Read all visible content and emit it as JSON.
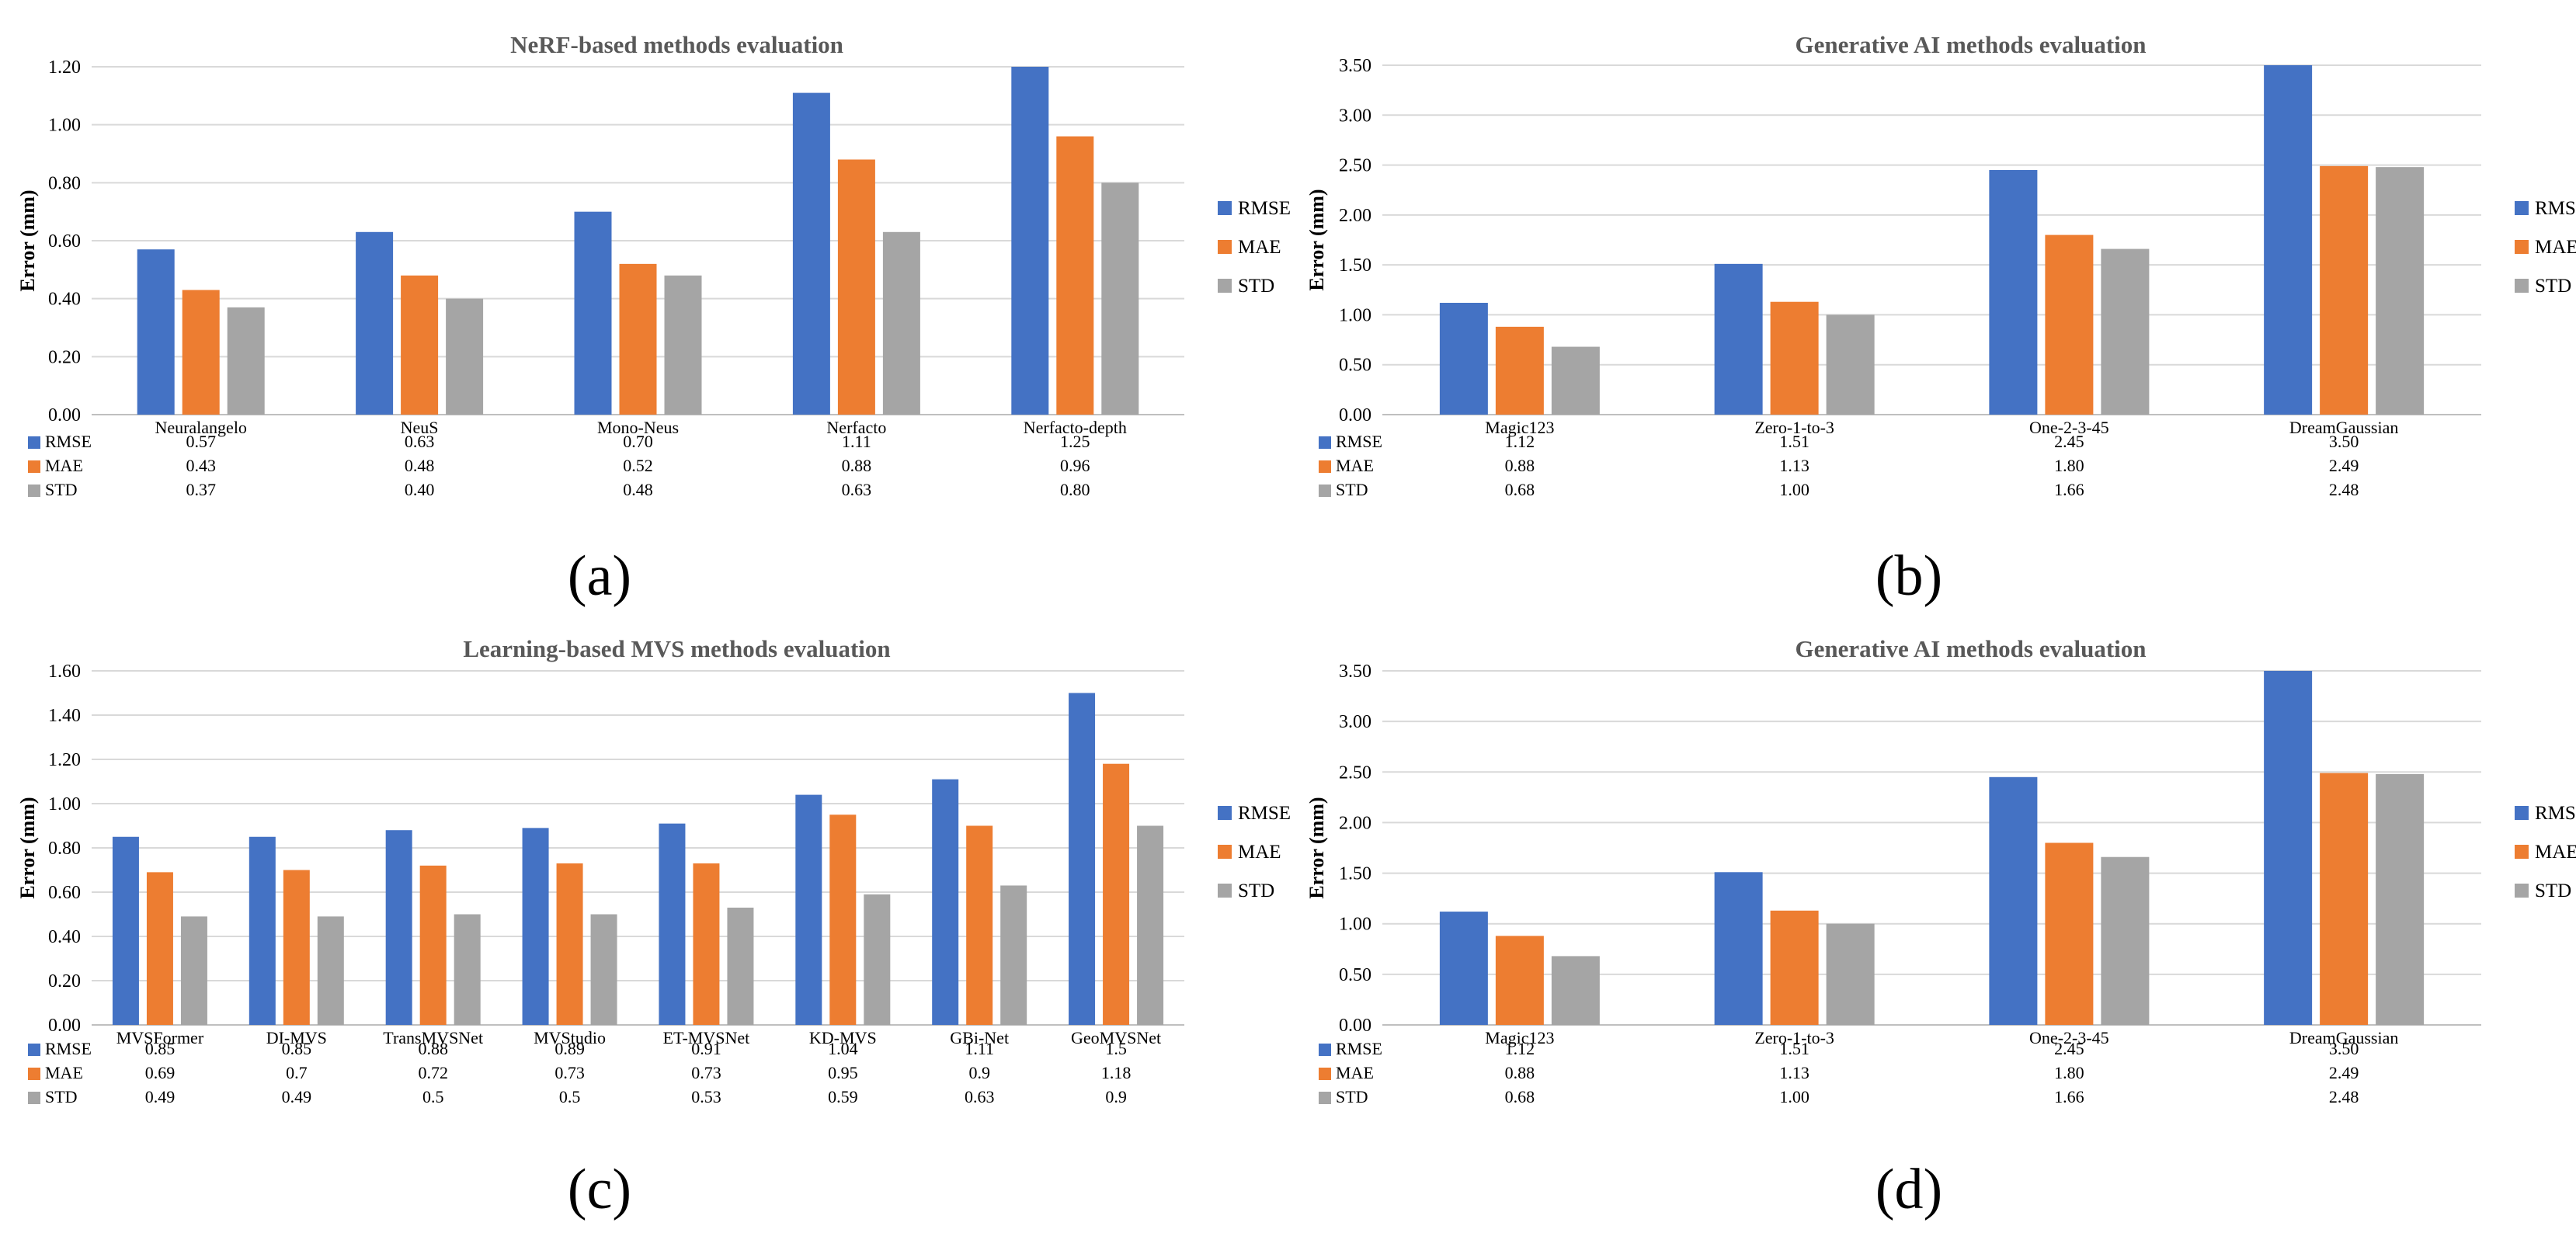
{
  "chart_data": [
    {
      "id": "a",
      "type": "bar",
      "title": "NeRF-based methods evaluation",
      "ylabel": "Error (mm)",
      "xlabel": "",
      "ylim": [
        0,
        1.2
      ],
      "yticks": [
        "0.00",
        "0.20",
        "0.40",
        "0.60",
        "0.80",
        "1.00",
        "1.20"
      ],
      "categories": [
        "Neuralangelo",
        "NeuS",
        "Mono-Neus",
        "Nerfacto",
        "Nerfacto-depth"
      ],
      "series": [
        {
          "name": "RMSE",
          "values": [
            0.57,
            0.63,
            0.7,
            1.11,
            1.25
          ],
          "labels": [
            "0.57",
            "0.63",
            "0.70",
            "1.11",
            "1.25"
          ]
        },
        {
          "name": "MAE",
          "values": [
            0.43,
            0.48,
            0.52,
            0.88,
            0.96
          ],
          "labels": [
            "0.43",
            "0.48",
            "0.52",
            "0.88",
            "0.96"
          ]
        },
        {
          "name": "STD",
          "values": [
            0.37,
            0.4,
            0.48,
            0.63,
            0.8
          ],
          "labels": [
            "0.37",
            "0.40",
            "0.48",
            "0.63",
            "0.80"
          ]
        }
      ],
      "legend": "right",
      "grid": true
    },
    {
      "id": "b",
      "type": "bar",
      "title": "Generative AI methods evaluation",
      "ylabel": "Error (mm)",
      "xlabel": "",
      "ylim": [
        0,
        3.5
      ],
      "yticks": [
        "0.00",
        "0.50",
        "1.00",
        "1.50",
        "2.00",
        "2.50",
        "3.00",
        "3.50"
      ],
      "categories": [
        "Magic123",
        "Zero-1-to-3",
        "One-2-3-45",
        "DreamGaussian"
      ],
      "series": [
        {
          "name": "RMSE",
          "values": [
            1.12,
            1.51,
            2.45,
            3.5
          ],
          "labels": [
            "1.12",
            "1.51",
            "2.45",
            "3.50"
          ]
        },
        {
          "name": "MAE",
          "values": [
            0.88,
            1.13,
            1.8,
            2.49
          ],
          "labels": [
            "0.88",
            "1.13",
            "1.80",
            "2.49"
          ]
        },
        {
          "name": "STD",
          "values": [
            0.68,
            1.0,
            1.66,
            2.48
          ],
          "labels": [
            "0.68",
            "1.00",
            "1.66",
            "2.48"
          ]
        }
      ],
      "legend": "right",
      "grid": true
    },
    {
      "id": "c",
      "type": "bar",
      "title": "Learning-based MVS methods evaluation",
      "ylabel": "Error (mm)",
      "xlabel": "",
      "ylim": [
        0,
        1.6
      ],
      "yticks": [
        "0.00",
        "0.20",
        "0.40",
        "0.60",
        "0.80",
        "1.00",
        "1.20",
        "1.40",
        "1.60"
      ],
      "categories": [
        "MVSFormer",
        "DI-MVS",
        "TransMVSNet",
        "MVStudio",
        "ET-MVSNet",
        "KD-MVS",
        "GBi-Net",
        "GeoMVSNet"
      ],
      "series": [
        {
          "name": "RMSE",
          "values": [
            0.85,
            0.85,
            0.88,
            0.89,
            0.91,
            1.04,
            1.11,
            1.5
          ],
          "labels": [
            "0.85",
            "0.85",
            "0.88",
            "0.89",
            "0.91",
            "1.04",
            "1.11",
            "1.5"
          ]
        },
        {
          "name": "MAE",
          "values": [
            0.69,
            0.7,
            0.72,
            0.73,
            0.73,
            0.95,
            0.9,
            1.18
          ],
          "labels": [
            "0.69",
            "0.7",
            "0.72",
            "0.73",
            "0.73",
            "0.95",
            "0.9",
            "1.18"
          ]
        },
        {
          "name": "STD",
          "values": [
            0.49,
            0.49,
            0.5,
            0.5,
            0.53,
            0.59,
            0.63,
            0.9
          ],
          "labels": [
            "0.49",
            "0.49",
            "0.5",
            "0.5",
            "0.53",
            "0.59",
            "0.63",
            "0.9"
          ]
        }
      ],
      "legend": "right",
      "grid": true
    },
    {
      "id": "d",
      "type": "bar",
      "title": "Generative AI methods evaluation",
      "ylabel": "Error (mm)",
      "xlabel": "",
      "ylim": [
        0,
        3.5
      ],
      "yticks": [
        "0.00",
        "0.50",
        "1.00",
        "1.50",
        "2.00",
        "2.50",
        "3.00",
        "3.50"
      ],
      "categories": [
        "Magic123",
        "Zero-1-to-3",
        "One-2-3-45",
        "DreamGaussian"
      ],
      "series": [
        {
          "name": "RMSE",
          "values": [
            1.12,
            1.51,
            2.45,
            3.5
          ],
          "labels": [
            "1.12",
            "1.51",
            "2.45",
            "3.50"
          ]
        },
        {
          "name": "MAE",
          "values": [
            0.88,
            1.13,
            1.8,
            2.49
          ],
          "labels": [
            "0.88",
            "1.13",
            "1.80",
            "2.49"
          ]
        },
        {
          "name": "STD",
          "values": [
            0.68,
            1.0,
            1.66,
            2.48
          ],
          "labels": [
            "0.68",
            "1.00",
            "1.66",
            "2.48"
          ]
        }
      ],
      "legend": "right",
      "grid": true
    }
  ],
  "colors": {
    "RMSE": "#4472C4",
    "MAE": "#ED7D31",
    "STD": "#A5A5A5",
    "grid": "#D9D9D9",
    "title": "#595959"
  },
  "panel_labels": [
    "(a)",
    "(b)",
    "(c)",
    "(d)"
  ]
}
